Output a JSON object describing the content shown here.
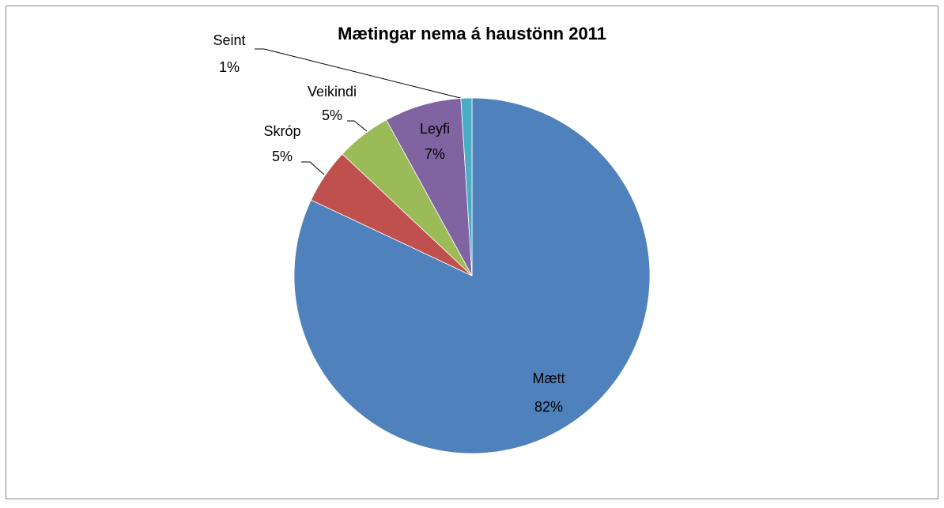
{
  "chart_data": {
    "type": "pie",
    "title": "Mætingar nema á haustönn 2011",
    "categories": [
      "Mætt",
      "Skróp",
      "Veikindi",
      "Leyfi",
      "Seint"
    ],
    "values": [
      82,
      5,
      5,
      7,
      1
    ],
    "value_labels": [
      "82%",
      "5%",
      "5%",
      "7%",
      "1%"
    ],
    "colors": [
      "#4f81bd",
      "#c0504d",
      "#9bbb59",
      "#8064a2",
      "#4bacc6"
    ]
  }
}
